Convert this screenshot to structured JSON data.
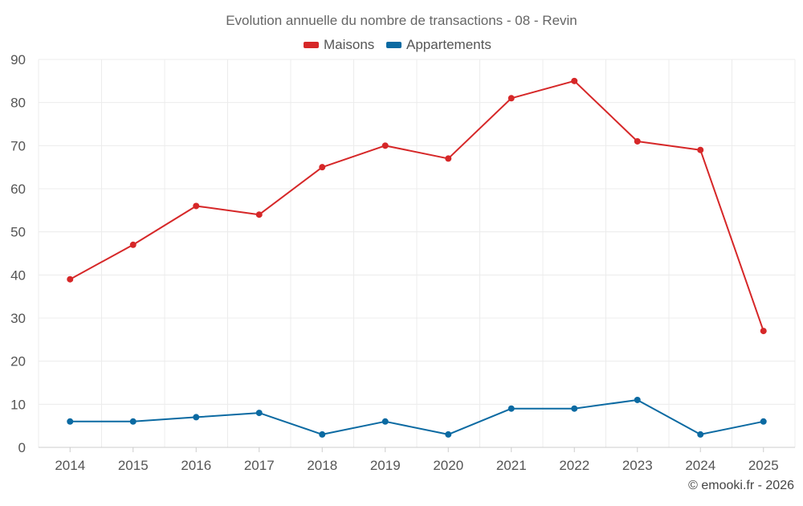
{
  "chart_data": {
    "type": "line",
    "title": "Evolution annuelle du nombre de transactions - 08 - Revin",
    "categories": [
      "2014",
      "2015",
      "2016",
      "2017",
      "2018",
      "2019",
      "2020",
      "2021",
      "2022",
      "2023",
      "2024",
      "2025"
    ],
    "series": [
      {
        "name": "Maisons",
        "color": "#d62728",
        "values": [
          39,
          47,
          56,
          54,
          65,
          70,
          67,
          81,
          85,
          71,
          69,
          27
        ]
      },
      {
        "name": "Appartements",
        "color": "#0b6aa2",
        "values": [
          6,
          6,
          7,
          8,
          3,
          6,
          3,
          9,
          9,
          11,
          3,
          6
        ]
      }
    ],
    "ylim": [
      0,
      90
    ],
    "yticks": [
      "0",
      "10",
      "20",
      "30",
      "40",
      "50",
      "60",
      "70",
      "80",
      "90"
    ],
    "xlabel": "",
    "ylabel": "",
    "legend": "top-center",
    "grid": true
  },
  "credit": "© emooki.fr - 2026"
}
